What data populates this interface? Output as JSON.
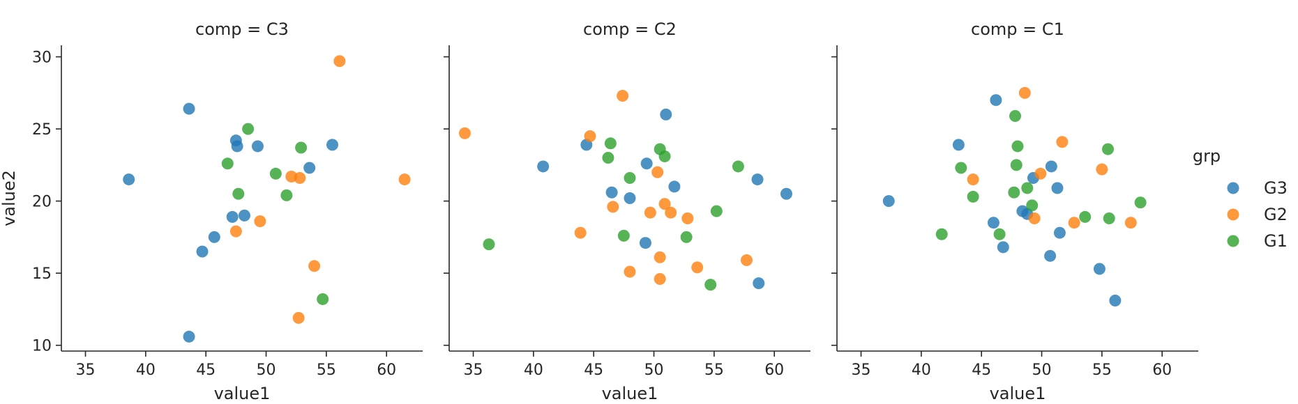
{
  "chart_data": {
    "type": "scatter",
    "facet_label": "comp",
    "xlabel": "value1",
    "ylabel": "value2",
    "xlim": [
      33,
      63
    ],
    "ylim": [
      9.6,
      30.8
    ],
    "x_ticks": [
      35,
      40,
      45,
      50,
      55,
      60
    ],
    "y_ticks": [
      10,
      15,
      20,
      25,
      30
    ],
    "grid": false,
    "legend": {
      "title": "grp",
      "placement": "right",
      "entries": [
        {
          "name": "G3",
          "color": "#1f77b4"
        },
        {
          "name": "G2",
          "color": "#ff7f0e"
        },
        {
          "name": "G1",
          "color": "#2ca02c"
        }
      ]
    },
    "panels": [
      {
        "title": "comp = C3",
        "series": [
          {
            "name": "G3",
            "points": [
              [
                43.6,
                26.4
              ],
              [
                38.6,
                21.5
              ],
              [
                47.5,
                24.2
              ],
              [
                47.6,
                23.8
              ],
              [
                49.3,
                23.8
              ],
              [
                55.5,
                23.9
              ],
              [
                53.6,
                22.3
              ],
              [
                47.2,
                18.9
              ],
              [
                48.2,
                19.0
              ],
              [
                45.7,
                17.5
              ],
              [
                44.7,
                16.5
              ],
              [
                43.6,
                10.6
              ]
            ]
          },
          {
            "name": "G2",
            "points": [
              [
                56.1,
                29.7
              ],
              [
                61.5,
                21.5
              ],
              [
                52.1,
                21.7
              ],
              [
                52.8,
                21.6
              ],
              [
                49.5,
                18.6
              ],
              [
                47.5,
                17.9
              ],
              [
                54.0,
                15.5
              ],
              [
                52.7,
                11.9
              ]
            ]
          },
          {
            "name": "G1",
            "points": [
              [
                48.5,
                25.0
              ],
              [
                46.8,
                22.6
              ],
              [
                52.9,
                23.7
              ],
              [
                50.8,
                21.9
              ],
              [
                47.7,
                20.5
              ],
              [
                51.7,
                20.4
              ],
              [
                54.7,
                13.2
              ]
            ]
          }
        ]
      },
      {
        "title": "comp = C2",
        "series": [
          {
            "name": "G3",
            "points": [
              [
                51.0,
                26.0
              ],
              [
                44.4,
                23.9
              ],
              [
                40.8,
                22.4
              ],
              [
                49.4,
                22.6
              ],
              [
                58.6,
                21.5
              ],
              [
                51.7,
                21.0
              ],
              [
                61.0,
                20.5
              ],
              [
                46.5,
                20.6
              ],
              [
                48.0,
                20.2
              ],
              [
                49.3,
                17.1
              ],
              [
                58.7,
                14.3
              ]
            ]
          },
          {
            "name": "G2",
            "points": [
              [
                34.3,
                24.7
              ],
              [
                47.4,
                27.3
              ],
              [
                44.7,
                24.5
              ],
              [
                50.3,
                22.0
              ],
              [
                46.6,
                19.6
              ],
              [
                50.9,
                19.8
              ],
              [
                49.7,
                19.2
              ],
              [
                51.4,
                19.2
              ],
              [
                52.8,
                18.8
              ],
              [
                43.9,
                17.8
              ],
              [
                50.5,
                16.1
              ],
              [
                57.7,
                15.9
              ],
              [
                48.0,
                15.1
              ],
              [
                53.6,
                15.4
              ],
              [
                50.5,
                14.6
              ]
            ]
          },
          {
            "name": "G1",
            "points": [
              [
                46.4,
                24.0
              ],
              [
                50.5,
                23.6
              ],
              [
                46.2,
                23.0
              ],
              [
                50.9,
                23.1
              ],
              [
                57.0,
                22.4
              ],
              [
                48.0,
                21.6
              ],
              [
                55.2,
                19.3
              ],
              [
                47.5,
                17.6
              ],
              [
                52.7,
                17.5
              ],
              [
                36.3,
                17.0
              ],
              [
                54.7,
                14.2
              ]
            ]
          }
        ]
      },
      {
        "title": "comp = C1",
        "series": [
          {
            "name": "G3",
            "points": [
              [
                46.2,
                27.0
              ],
              [
                43.1,
                23.9
              ],
              [
                50.8,
                22.4
              ],
              [
                49.3,
                21.6
              ],
              [
                51.3,
                20.9
              ],
              [
                37.3,
                20.0
              ],
              [
                48.4,
                19.3
              ],
              [
                48.8,
                19.1
              ],
              [
                46.0,
                18.5
              ],
              [
                51.5,
                17.8
              ],
              [
                46.8,
                16.8
              ],
              [
                50.7,
                16.2
              ],
              [
                54.8,
                15.3
              ],
              [
                56.1,
                13.1
              ]
            ]
          },
          {
            "name": "G2",
            "points": [
              [
                48.6,
                27.5
              ],
              [
                51.7,
                24.1
              ],
              [
                55.0,
                22.2
              ],
              [
                49.9,
                21.9
              ],
              [
                44.3,
                21.5
              ],
              [
                49.4,
                18.8
              ],
              [
                52.7,
                18.5
              ],
              [
                57.4,
                18.5
              ]
            ]
          },
          {
            "name": "G1",
            "points": [
              [
                47.8,
                25.9
              ],
              [
                48.0,
                23.8
              ],
              [
                55.5,
                23.6
              ],
              [
                43.3,
                22.3
              ],
              [
                47.9,
                22.5
              ],
              [
                48.8,
                20.9
              ],
              [
                47.7,
                20.6
              ],
              [
                44.3,
                20.3
              ],
              [
                49.2,
                19.7
              ],
              [
                58.2,
                19.9
              ],
              [
                53.6,
                18.9
              ],
              [
                55.6,
                18.8
              ],
              [
                46.5,
                17.7
              ],
              [
                41.7,
                17.7
              ]
            ]
          }
        ]
      }
    ]
  }
}
